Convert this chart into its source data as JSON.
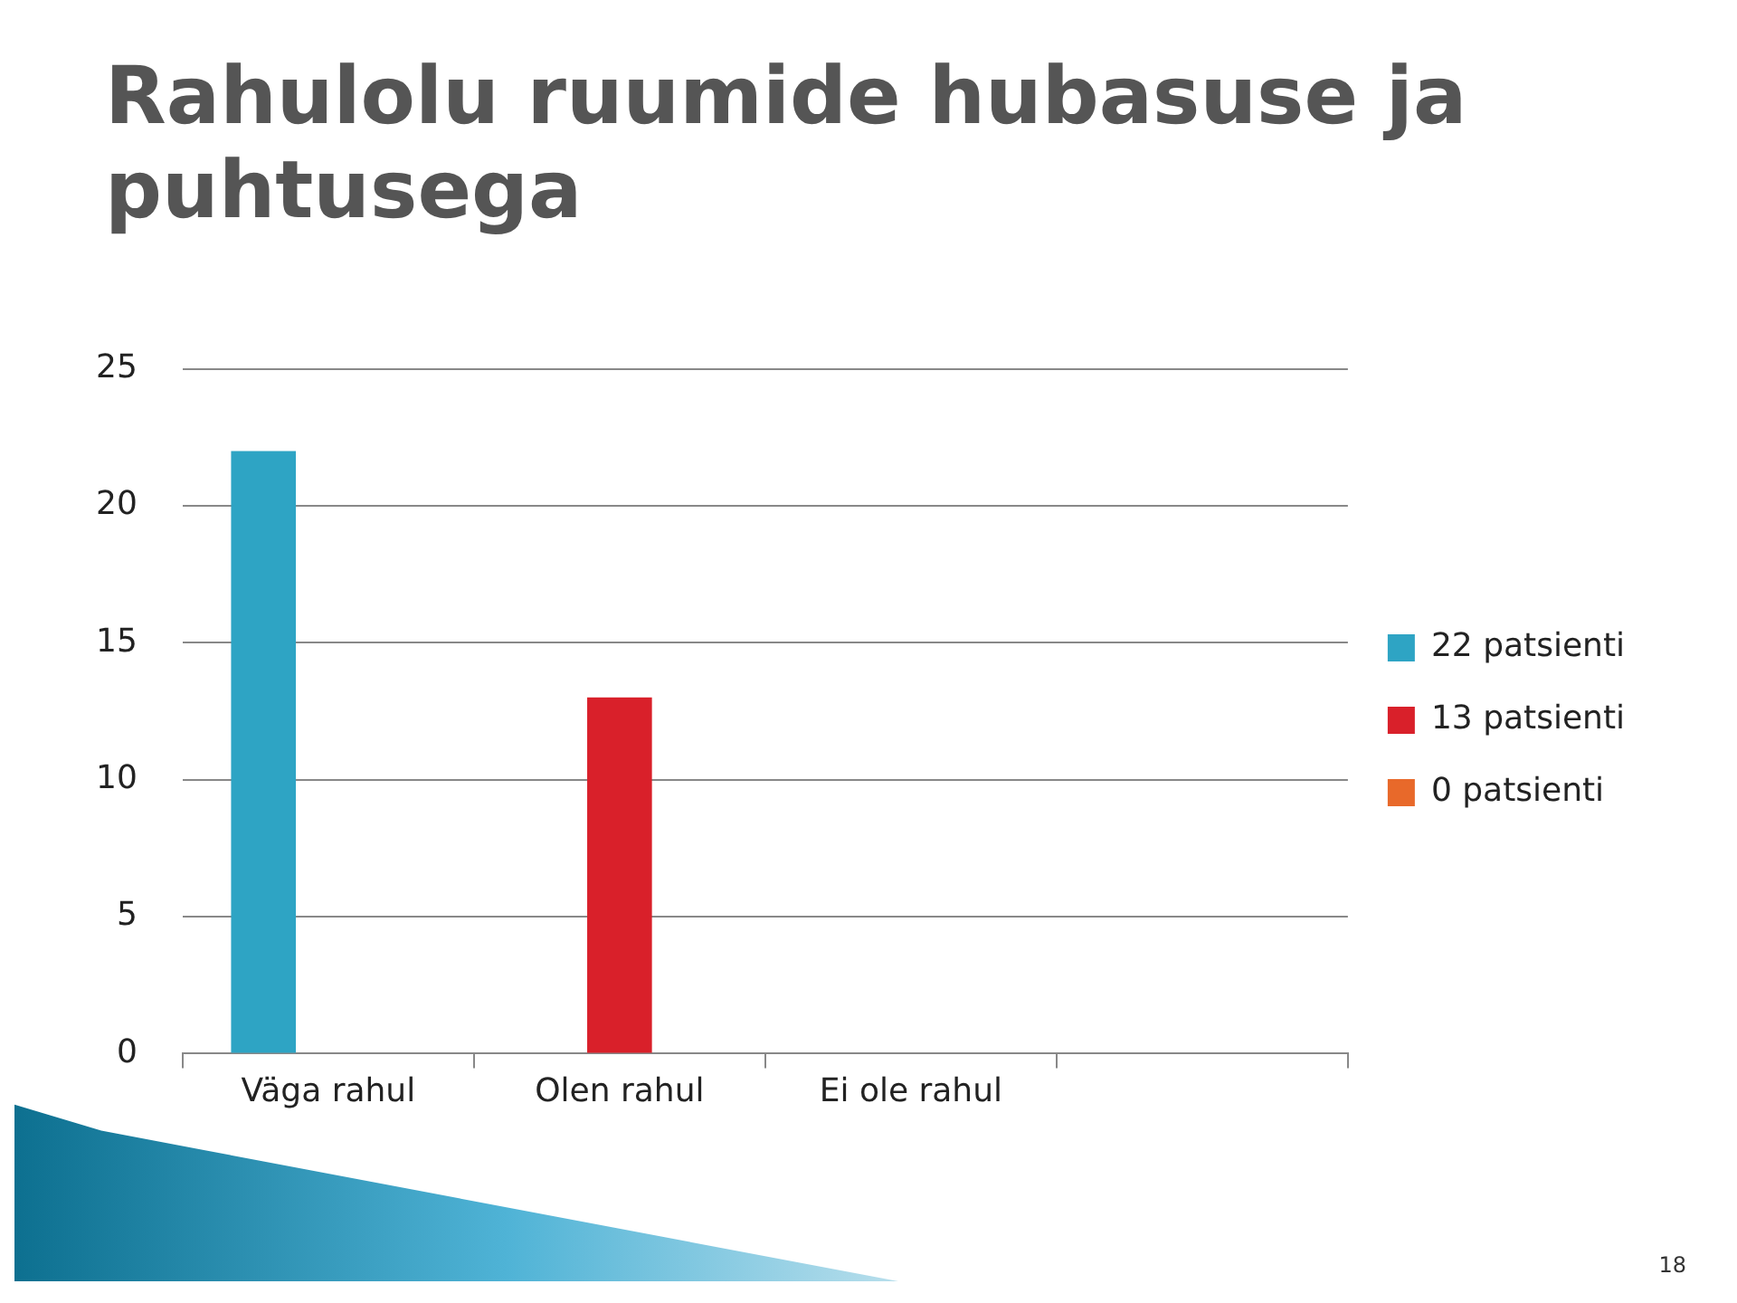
{
  "chart_data": {
    "type": "bar",
    "title": "Rahulolu ruumide hubasuse ja puhtusega",
    "categories": [
      "Väga rahul",
      "Olen rahul",
      "Ei ole rahul",
      null
    ],
    "series": [
      {
        "name": "22 patsienti",
        "color": "#2ea4c4",
        "values": [
          22,
          null,
          null,
          null
        ]
      },
      {
        "name": "13 patsienti",
        "color": "#d9202a",
        "values": [
          null,
          13,
          null,
          null
        ]
      },
      {
        "name": "0 patsienti",
        "color": "#e8692a",
        "values": [
          null,
          null,
          0,
          null
        ]
      }
    ],
    "ylim": [
      0,
      25
    ],
    "yticks": [
      0,
      5,
      10,
      15,
      20,
      25
    ],
    "grid": "y",
    "legend": "right",
    "annotations": [
      "18"
    ]
  }
}
